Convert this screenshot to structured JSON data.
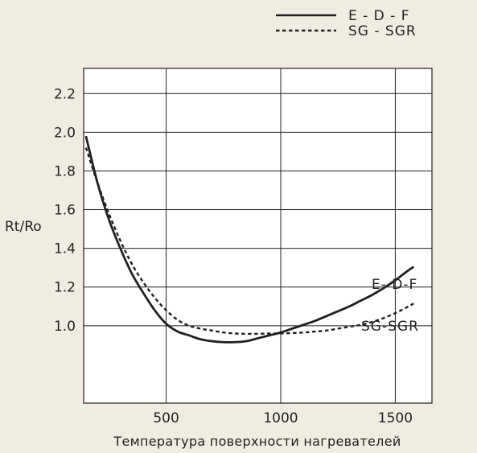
{
  "chart_data": {
    "type": "line",
    "title": "",
    "xlabel": "Температура поверхности нагревателей",
    "ylabel": "Rt/Ro",
    "xlim": [
      140,
      1660
    ],
    "ylim": [
      0.6,
      2.33
    ],
    "xticks": [
      500,
      1000,
      1500
    ],
    "xtick_labels": [
      "500",
      "1000",
      "1500"
    ],
    "yticks": [
      1.0,
      1.2,
      1.4,
      1.6,
      1.8,
      2.0,
      2.2
    ],
    "ytick_labels": [
      "1.0",
      "1.2",
      "1.4",
      "1.6",
      "1.8",
      "2.0",
      "2.2"
    ],
    "x_gridlines": [
      500,
      1000,
      1500
    ],
    "y_gridlines": [
      2.2,
      2.0,
      1.8,
      1.6,
      1.4,
      1.2,
      1.0
    ],
    "grid": true,
    "legend_position": "top-right",
    "series": [
      {
        "name": "E-  D-F",
        "legend_label": "E -   D - F",
        "inline_label": "E-  D-F",
        "style": "solid",
        "color": "#231f20",
        "x": [
          150,
          200,
          250,
          300,
          350,
          400,
          450,
          500,
          550,
          600,
          650,
          700,
          750,
          800,
          850,
          900,
          950,
          1000,
          1050,
          1100,
          1150,
          1200,
          1250,
          1300,
          1350,
          1400,
          1450,
          1500,
          1550,
          1580
        ],
        "y": [
          1.98,
          1.74,
          1.55,
          1.4,
          1.27,
          1.17,
          1.08,
          1.01,
          0.97,
          0.95,
          0.93,
          0.92,
          0.915,
          0.915,
          0.92,
          0.935,
          0.95,
          0.965,
          0.985,
          1.005,
          1.025,
          1.05,
          1.075,
          1.1,
          1.13,
          1.16,
          1.195,
          1.235,
          1.28,
          1.305
        ]
      },
      {
        "name": "SG-SGR",
        "legend_label": "SG - SGR",
        "inline_label": "SG-SGR",
        "style": "dashed",
        "color": "#231f20",
        "x": [
          150,
          200,
          250,
          300,
          350,
          400,
          450,
          500,
          550,
          600,
          650,
          700,
          750,
          800,
          850,
          900,
          950,
          1000,
          1050,
          1100,
          1150,
          1200,
          1250,
          1300,
          1350,
          1400,
          1450,
          1500,
          1550,
          1580
        ],
        "y": [
          1.92,
          1.74,
          1.58,
          1.44,
          1.32,
          1.225,
          1.145,
          1.08,
          1.03,
          1.0,
          0.985,
          0.975,
          0.965,
          0.96,
          0.958,
          0.958,
          0.96,
          0.96,
          0.962,
          0.965,
          0.97,
          0.975,
          0.985,
          0.995,
          1.005,
          1.02,
          1.04,
          1.065,
          1.095,
          1.115
        ]
      }
    ]
  }
}
